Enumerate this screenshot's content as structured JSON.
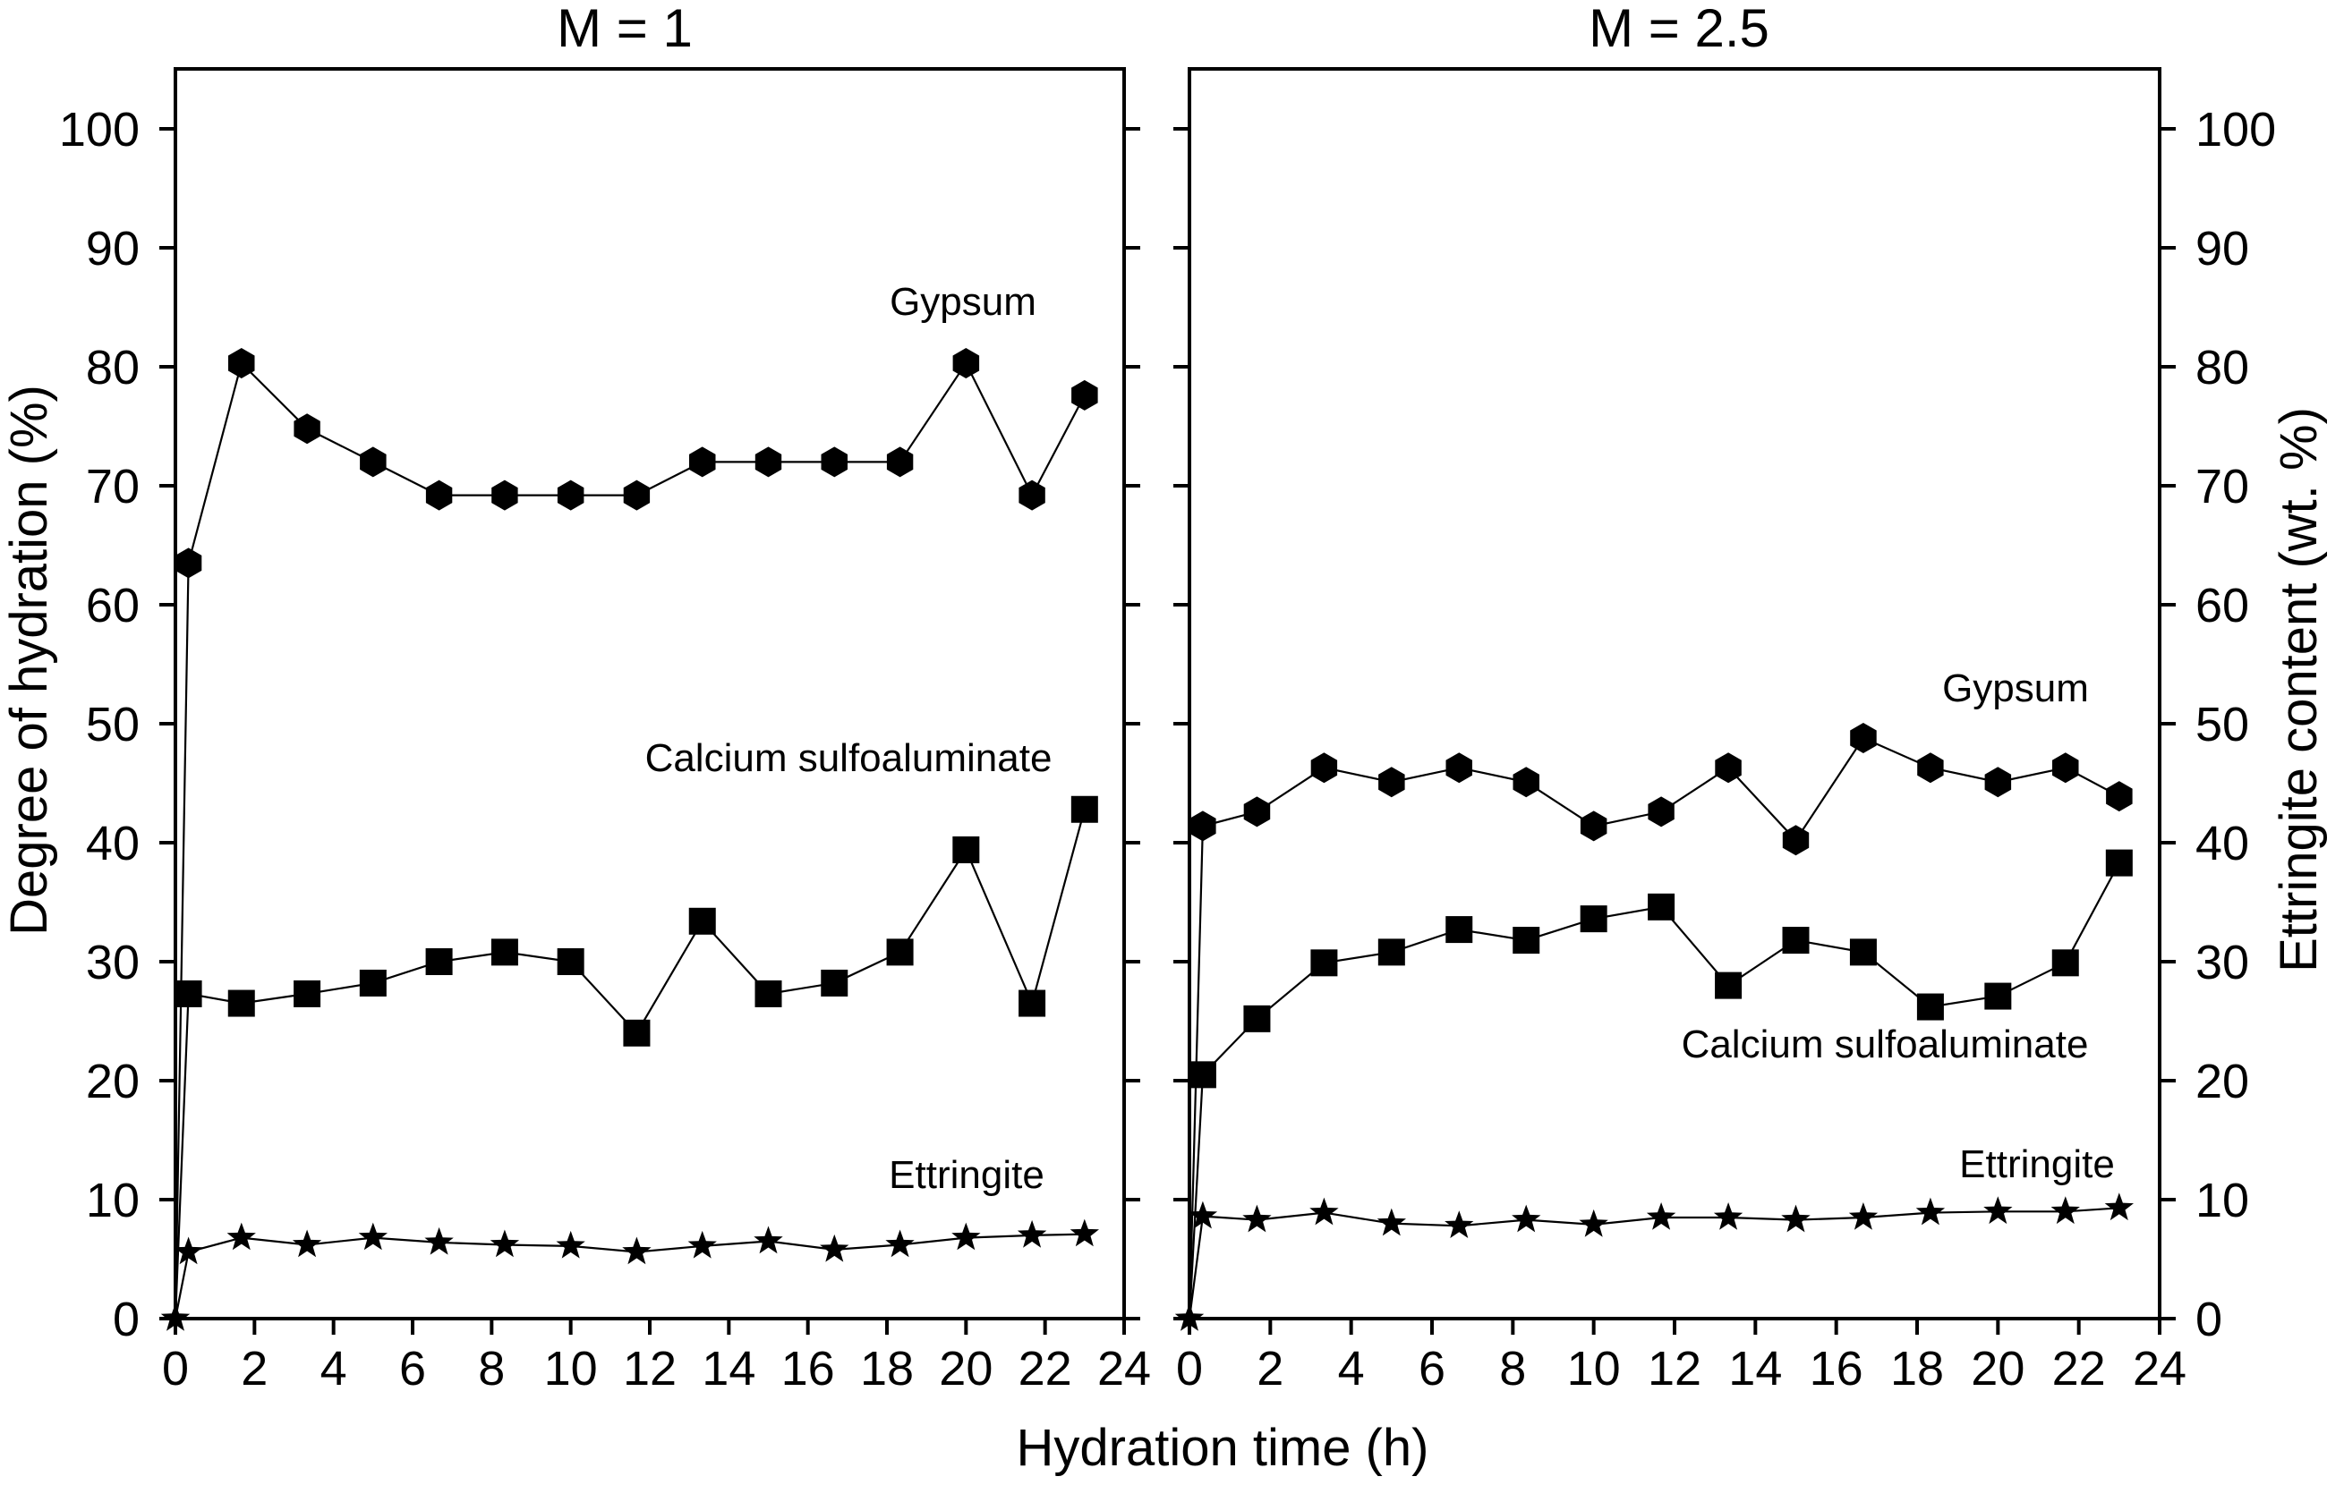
{
  "chart_data": {
    "type": "scatter",
    "xlabel": "Hydration time (h)",
    "ylabel_left": "Degree of hydration (%)",
    "ylabel_right": "Ettringite content (wt. %)",
    "xlim": [
      0,
      24
    ],
    "ylim": [
      0,
      105
    ],
    "xticks": [
      0,
      2,
      4,
      6,
      8,
      10,
      12,
      14,
      16,
      18,
      20,
      22,
      24
    ],
    "yticks": [
      0,
      10,
      20,
      30,
      40,
      50,
      60,
      70,
      80,
      90,
      100
    ],
    "panels": [
      {
        "title": "M = 1",
        "series": [
          {
            "name": "Gypsum",
            "marker": "hexagon",
            "x": [
              0.33,
              1.67,
              3.33,
              5,
              6.67,
              8.33,
              10,
              11.67,
              13.33,
              15,
              16.67,
              18.33,
              20,
              21.67,
              23
            ],
            "values": [
              63.5,
              80.3,
              74.8,
              72,
              69.2,
              69.2,
              69.2,
              69.2,
              72,
              72,
              72,
              72,
              80.3,
              69.2,
              77.6
            ]
          },
          {
            "name": "Calcium sulfoaluminate",
            "marker": "square",
            "x": [
              0.33,
              1.67,
              3.33,
              5,
              6.67,
              8.33,
              10,
              11.67,
              13.33,
              15,
              16.67,
              18.33,
              20,
              21.67,
              23
            ],
            "values": [
              27.3,
              26.5,
              27.3,
              28.2,
              30,
              30.8,
              30,
              24,
              33.4,
              27.3,
              28.2,
              30.8,
              39.4,
              26.5,
              42.8
            ]
          },
          {
            "name": "Ettringite",
            "marker": "star",
            "x": [
              0,
              0.33,
              1.67,
              3.33,
              5,
              6.67,
              8.33,
              10,
              11.67,
              13.33,
              15,
              16.67,
              18.33,
              20,
              21.67,
              23
            ],
            "values": [
              0,
              5.6,
              6.8,
              6.2,
              6.8,
              6.4,
              6.2,
              6.1,
              5.6,
              6.1,
              6.5,
              5.8,
              6.2,
              6.8,
              7,
              7.1
            ]
          }
        ],
        "annotations": {
          "gypsum": "Gypsum",
          "csa": "Calcium sulfoaluminate",
          "ettringite": "Ettringite"
        }
      },
      {
        "title": "M = 2.5",
        "series": [
          {
            "name": "Gypsum",
            "marker": "hexagon",
            "x": [
              0.33,
              1.67,
              3.33,
              5,
              6.67,
              8.33,
              10,
              11.67,
              13.33,
              15,
              16.67,
              18.33,
              20,
              21.67,
              23
            ],
            "values": [
              41.4,
              42.6,
              46.3,
              45.1,
              46.3,
              45.1,
              41.4,
              42.6,
              46.3,
              40.2,
              48.8,
              46.3,
              45.1,
              46.3,
              43.9
            ]
          },
          {
            "name": "Calcium sulfoaluminate",
            "marker": "square",
            "x": [
              0.33,
              1.67,
              3.33,
              5,
              6.67,
              8.33,
              10,
              11.67,
              13.33,
              15,
              16.67,
              18.33,
              20,
              21.67,
              23
            ],
            "values": [
              20.5,
              25.2,
              29.9,
              30.8,
              32.7,
              31.8,
              33.6,
              34.6,
              28,
              31.8,
              30.8,
              26.2,
              27.1,
              29.9,
              38.3
            ]
          },
          {
            "name": "Ettringite",
            "marker": "star",
            "x": [
              0,
              0.33,
              1.67,
              3.33,
              5,
              6.67,
              8.33,
              10,
              11.67,
              13.33,
              15,
              16.67,
              18.33,
              20,
              21.67,
              23
            ],
            "values": [
              0,
              8.6,
              8.3,
              8.9,
              8,
              7.8,
              8.3,
              7.9,
              8.5,
              8.5,
              8.3,
              8.5,
              8.9,
              9,
              9,
              9.3
            ]
          }
        ],
        "annotations": {
          "gypsum": "Gypsum",
          "csa": "Calcium sulfoaluminate",
          "ettringite": "Ettringite"
        }
      }
    ]
  }
}
